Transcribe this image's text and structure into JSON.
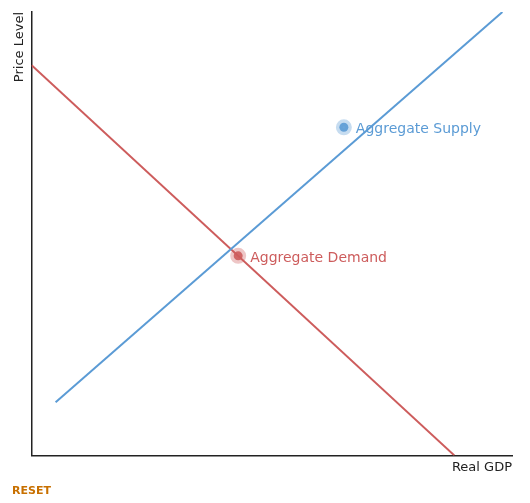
{
  "chart_data": {
    "type": "line",
    "xlabel": "Real GDP",
    "ylabel": "Price Level",
    "xlim": [
      0,
      10
    ],
    "ylim": [
      0,
      10
    ],
    "grid": false,
    "tick_labels": false,
    "series": [
      {
        "type": "line",
        "color": "#5b9bd5",
        "x": [
          0.5,
          9.8
        ],
        "values": [
          1.2,
          10.0
        ]
      },
      {
        "type": "line",
        "color": "#cd5c5c",
        "x": [
          0.0,
          8.8
        ],
        "values": [
          8.8,
          0.0
        ]
      },
      {
        "type": "scatter",
        "marker": "circle",
        "color": "#5b9bd5",
        "x": [
          6.5
        ],
        "values": [
          7.4
        ]
      },
      {
        "type": "scatter",
        "marker": "circle",
        "color": "#cd5c5c",
        "x": [
          4.3
        ],
        "values": [
          4.5
        ]
      }
    ],
    "annotations": [
      {
        "text": "Aggregate Supply",
        "x": 6.75,
        "y": 7.35,
        "color": "#5b9bd5"
      },
      {
        "text": "Aggregate Demand",
        "x": 4.55,
        "y": 4.45,
        "color": "#cd5c5c"
      },
      {
        "text": "RESET",
        "color": "#c87000"
      }
    ]
  }
}
